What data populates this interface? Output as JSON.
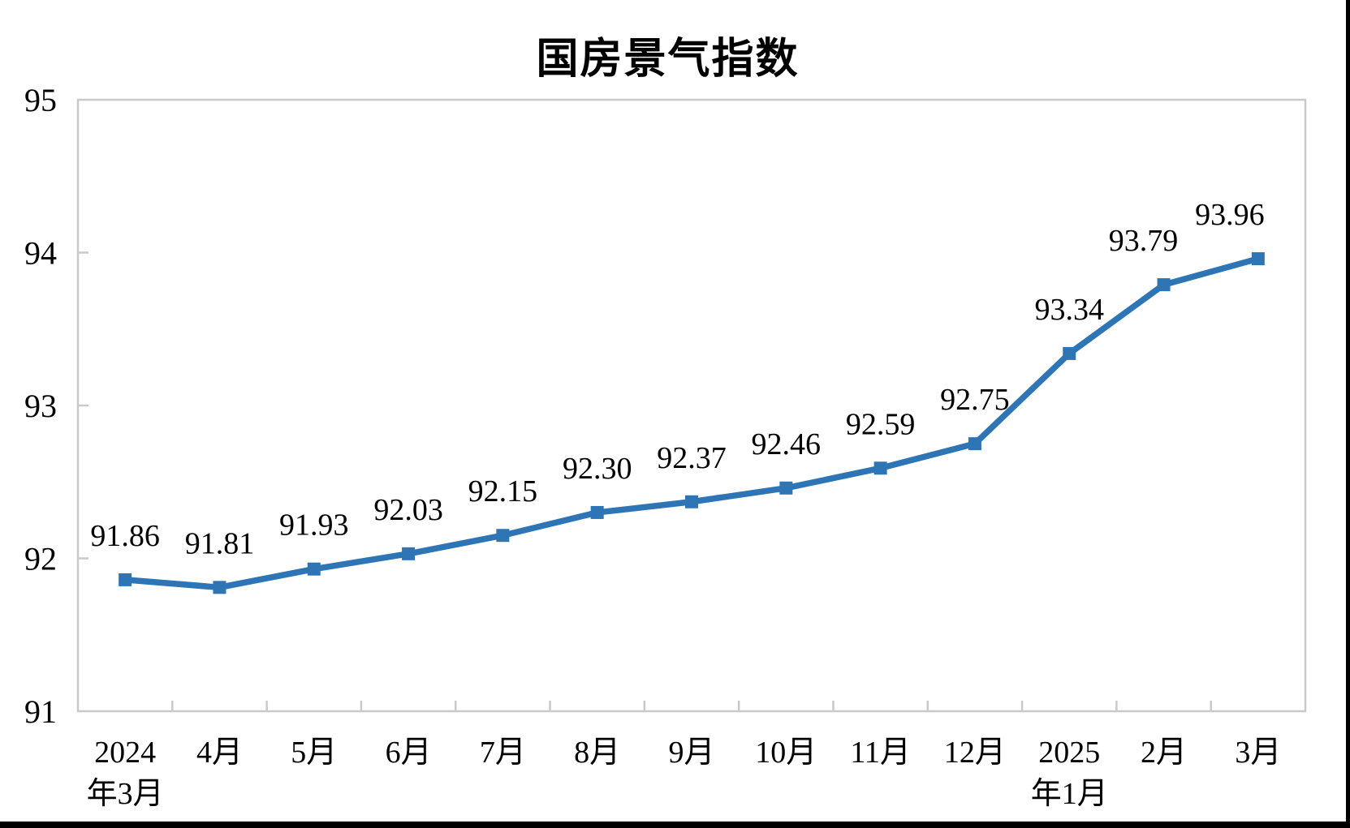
{
  "chart_data": {
    "type": "line",
    "title": "国房景气指数",
    "categories": [
      {
        "line1": "2024",
        "line2": "年3月"
      },
      {
        "line1": "4月",
        "line2": ""
      },
      {
        "line1": "5月",
        "line2": ""
      },
      {
        "line1": "6月",
        "line2": ""
      },
      {
        "line1": "7月",
        "line2": ""
      },
      {
        "line1": "8月",
        "line2": ""
      },
      {
        "line1": "9月",
        "line2": ""
      },
      {
        "line1": "10月",
        "line2": ""
      },
      {
        "line1": "11月",
        "line2": ""
      },
      {
        "line1": "12月",
        "line2": ""
      },
      {
        "line1": "2025",
        "line2": "年1月"
      },
      {
        "line1": "2月",
        "line2": ""
      },
      {
        "line1": "3月",
        "line2": ""
      }
    ],
    "values": [
      91.86,
      91.81,
      91.93,
      92.03,
      92.15,
      92.3,
      92.37,
      92.46,
      92.59,
      92.75,
      93.34,
      93.79,
      93.96
    ],
    "point_labels": [
      "91.86",
      "91.81",
      "91.93",
      "92.03",
      "92.15",
      "92.30",
      "92.37",
      "92.46",
      "92.59",
      "92.75",
      "93.34",
      "93.79",
      "93.96"
    ],
    "series_name": "国房景气指数",
    "xlabel": "",
    "ylabel": "",
    "ylim": [
      91,
      95
    ],
    "y_ticks": [
      {
        "label": "95",
        "value": 95
      },
      {
        "label": "94",
        "value": 94
      },
      {
        "label": "93",
        "value": 93
      },
      {
        "label": "92",
        "value": 92
      },
      {
        "label": "91",
        "value": 91
      }
    ],
    "grid": "off",
    "legend": "none",
    "colors": {
      "line": "#2E75B6",
      "marker": "#2E75B6",
      "frame": "#C9C9C9",
      "text": "#000000"
    }
  }
}
